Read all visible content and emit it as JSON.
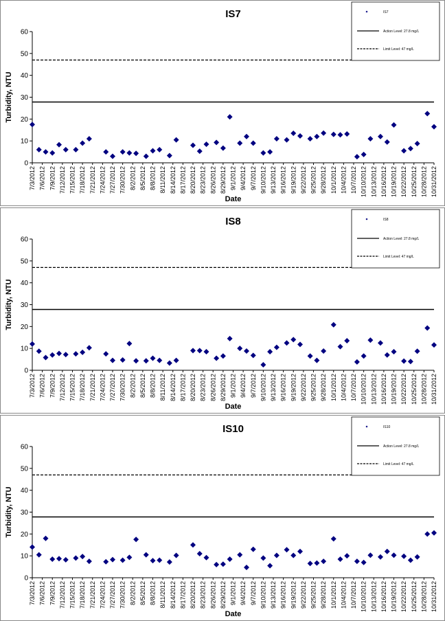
{
  "chart_data": [
    {
      "type": "scatter",
      "title": "IS7",
      "x_label": "Date",
      "y_label": "Turbidity, NTU",
      "xlim": [
        "7/3/2012",
        "10/31/2012"
      ],
      "xticks": [
        "7/3/2012",
        "7/6/2012",
        "7/9/2012",
        "7/12/2012",
        "7/15/2012",
        "7/18/2012",
        "7/21/2012",
        "7/24/2012",
        "7/27/2012",
        "7/30/2012",
        "8/2/2012",
        "8/5/2012",
        "8/8/2012",
        "8/11/2012",
        "8/14/2012",
        "8/17/2012",
        "8/20/2012",
        "8/23/2012",
        "8/26/2012",
        "8/29/2012",
        "9/1/2012",
        "9/4/2012",
        "9/7/2012",
        "9/10/2012",
        "9/13/2012",
        "9/16/2012",
        "9/19/2012",
        "9/22/2012",
        "9/25/2012",
        "9/28/2012",
        "10/1/2012",
        "10/4/2012",
        "10/7/2012",
        "10/10/2012",
        "10/13/2012",
        "10/16/2012",
        "10/19/2012",
        "10/22/2012",
        "10/25/2012",
        "10/28/2012",
        "10/31/2012"
      ],
      "ylim": [
        0,
        60
      ],
      "yticks": [
        0,
        10,
        20,
        30,
        40,
        50,
        60
      ],
      "series": [
        {
          "name": "IS7",
          "color": "#000080",
          "x": [
            "7/3/2012",
            "7/5/2012",
            "7/7/2012",
            "7/9/2012",
            "7/11/2012",
            "7/13/2012",
            "7/16/2012",
            "7/18/2012",
            "7/20/2012",
            "7/25/2012",
            "7/27/2012",
            "7/30/2012",
            "8/1/2012",
            "8/3/2012",
            "8/6/2012",
            "8/8/2012",
            "8/10/2012",
            "8/13/2012",
            "8/15/2012",
            "8/20/2012",
            "8/22/2012",
            "8/24/2012",
            "8/27/2012",
            "8/29/2012",
            "8/31/2012",
            "9/3/2012",
            "9/5/2012",
            "9/7/2012",
            "9/10/2012",
            "9/12/2012",
            "9/14/2012",
            "9/17/2012",
            "9/19/2012",
            "9/21/2012",
            "9/24/2012",
            "9/26/2012",
            "9/28/2012",
            "10/1/2012",
            "10/3/2012",
            "10/5/2012",
            "10/8/2012",
            "10/10/2012",
            "10/12/2012",
            "10/15/2012",
            "10/17/2012",
            "10/19/2012",
            "10/22/2012",
            "10/24/2012",
            "10/26/2012",
            "10/29/2012",
            "10/31/2012"
          ],
          "values": [
            17.5,
            6,
            5,
            4.5,
            8.3,
            6,
            6,
            9,
            11,
            5,
            3,
            5,
            4.5,
            4.3,
            3,
            5.5,
            6,
            3.3,
            10.5,
            8,
            5.3,
            8.5,
            9.3,
            6.7,
            21,
            9,
            12,
            9,
            4.5,
            5,
            11,
            10.5,
            13.5,
            12.3,
            11,
            12,
            13.6,
            13,
            12.8,
            13.2,
            2.8,
            3.8,
            11,
            12,
            9.5,
            17.3,
            5.5,
            6.5,
            8.8,
            22.5,
            16.5
          ]
        }
      ],
      "lines": [
        {
          "name": "Action Level: 27.8 mg/L",
          "value": 27.8,
          "style": "solid",
          "color": "#000000"
        },
        {
          "name": "Limit Level: 47 mg/L",
          "value": 47,
          "style": "dashed",
          "color": "#000000"
        }
      ]
    },
    {
      "type": "scatter",
      "title": "IS8",
      "x_label": "Date",
      "y_label": "Turbidity, NTU",
      "xlim": [
        "7/3/2012",
        "10/31/2012"
      ],
      "xticks": [
        "7/3/2012",
        "7/6/2012",
        "7/9/2012",
        "7/12/2012",
        "7/15/2012",
        "7/18/2012",
        "7/21/2012",
        "7/24/2012",
        "7/27/2012",
        "7/30/2012",
        "8/2/2012",
        "8/5/2012",
        "8/8/2012",
        "8/11/2012",
        "8/14/2012",
        "8/17/2012",
        "8/20/2012",
        "8/23/2012",
        "8/26/2012",
        "8/29/2012",
        "9/1/2012",
        "9/4/2012",
        "9/7/2012",
        "9/10/2012",
        "9/13/2012",
        "9/16/2012",
        "9/19/2012",
        "9/22/2012",
        "9/25/2012",
        "9/28/2012",
        "10/1/2012",
        "10/4/2012",
        "10/7/2012",
        "10/10/2012",
        "10/13/2012",
        "10/16/2012",
        "10/19/2012",
        "10/22/2012",
        "10/25/2012",
        "10/28/2012",
        "10/31/2012"
      ],
      "ylim": [
        0,
        60
      ],
      "yticks": [
        0,
        10,
        20,
        30,
        40,
        50,
        60
      ],
      "series": [
        {
          "name": "IS8",
          "color": "#000080",
          "x": [
            "7/3/2012",
            "7/5/2012",
            "7/7/2012",
            "7/9/2012",
            "7/11/2012",
            "7/13/2012",
            "7/16/2012",
            "7/18/2012",
            "7/20/2012",
            "7/25/2012",
            "7/27/2012",
            "7/30/2012",
            "8/1/2012",
            "8/3/2012",
            "8/6/2012",
            "8/8/2012",
            "8/10/2012",
            "8/13/2012",
            "8/15/2012",
            "8/20/2012",
            "8/22/2012",
            "8/24/2012",
            "8/27/2012",
            "8/29/2012",
            "8/31/2012",
            "9/3/2012",
            "9/5/2012",
            "9/7/2012",
            "9/10/2012",
            "9/12/2012",
            "9/14/2012",
            "9/17/2012",
            "9/19/2012",
            "9/21/2012",
            "9/24/2012",
            "9/26/2012",
            "9/28/2012",
            "10/1/2012",
            "10/3/2012",
            "10/5/2012",
            "10/8/2012",
            "10/10/2012",
            "10/12/2012",
            "10/15/2012",
            "10/17/2012",
            "10/19/2012",
            "10/22/2012",
            "10/24/2012",
            "10/26/2012",
            "10/29/2012",
            "10/31/2012"
          ],
          "values": [
            12,
            8.7,
            5.8,
            7,
            7.7,
            7.2,
            7.5,
            8.2,
            10.3,
            7.5,
            4.5,
            4.7,
            12.2,
            4.3,
            4.3,
            5.5,
            4.5,
            3.3,
            4.5,
            9,
            9,
            8.5,
            5.5,
            6.5,
            14.5,
            10,
            8.8,
            6.8,
            2.5,
            8.5,
            10.5,
            12.5,
            14,
            11.8,
            6.5,
            4.5,
            8.8,
            20.8,
            10.8,
            13.5,
            3.8,
            6.5,
            13.8,
            12.5,
            7,
            8.5,
            4.2,
            4,
            8.7,
            19.3,
            11.6
          ]
        }
      ],
      "lines": [
        {
          "name": "Action Level: 27.8 mg/L",
          "value": 27.8,
          "style": "solid",
          "color": "#000000"
        },
        {
          "name": "Limit Level: 47 mg/L",
          "value": 47,
          "style": "dashed",
          "color": "#000000"
        }
      ]
    },
    {
      "type": "scatter",
      "title": "IS10",
      "x_label": "Date",
      "y_label": "Turbidity, NTU",
      "xlim": [
        "7/3/2012",
        "10/31/2012"
      ],
      "xticks": [
        "7/3/2012",
        "7/6/2012",
        "7/9/2012",
        "7/12/2012",
        "7/15/2012",
        "7/18/2012",
        "7/21/2012",
        "7/24/2012",
        "7/27/2012",
        "7/30/2012",
        "8/2/2012",
        "8/5/2012",
        "8/8/2012",
        "8/11/2012",
        "8/14/2012",
        "8/17/2012",
        "8/20/2012",
        "8/23/2012",
        "8/26/2012",
        "8/29/2012",
        "9/1/2012",
        "9/4/2012",
        "9/7/2012",
        "9/10/2012",
        "9/13/2012",
        "9/16/2012",
        "9/19/2012",
        "9/22/2012",
        "9/25/2012",
        "9/28/2012",
        "10/1/2012",
        "10/4/2012",
        "10/7/2012",
        "10/10/2012",
        "10/13/2012",
        "10/16/2012",
        "10/19/2012",
        "10/22/2012",
        "10/25/2012",
        "10/28/2012",
        "10/31/2012"
      ],
      "ylim": [
        0,
        60
      ],
      "yticks": [
        0,
        10,
        20,
        30,
        40,
        50,
        60
      ],
      "series": [
        {
          "name": "IS10",
          "color": "#000080",
          "x": [
            "7/3/2012",
            "7/5/2012",
            "7/7/2012",
            "7/9/2012",
            "7/11/2012",
            "7/13/2012",
            "7/16/2012",
            "7/18/2012",
            "7/20/2012",
            "7/25/2012",
            "7/27/2012",
            "7/30/2012",
            "8/1/2012",
            "8/3/2012",
            "8/6/2012",
            "8/8/2012",
            "8/10/2012",
            "8/13/2012",
            "8/15/2012",
            "8/20/2012",
            "8/22/2012",
            "8/24/2012",
            "8/27/2012",
            "8/29/2012",
            "8/31/2012",
            "9/3/2012",
            "9/5/2012",
            "9/7/2012",
            "9/10/2012",
            "9/12/2012",
            "9/14/2012",
            "9/17/2012",
            "9/19/2012",
            "9/21/2012",
            "9/24/2012",
            "9/26/2012",
            "9/28/2012",
            "10/1/2012",
            "10/3/2012",
            "10/5/2012",
            "10/8/2012",
            "10/10/2012",
            "10/12/2012",
            "10/15/2012",
            "10/17/2012",
            "10/19/2012",
            "10/22/2012",
            "10/24/2012",
            "10/26/2012",
            "10/29/2012",
            "10/31/2012"
          ],
          "values": [
            14,
            10.5,
            18,
            8.5,
            8.7,
            8.2,
            9,
            9.7,
            7.5,
            7.3,
            8.3,
            8,
            9.3,
            17.5,
            10.5,
            7.8,
            8,
            7.2,
            10.2,
            15,
            11,
            9.2,
            6,
            6.2,
            8.5,
            10.5,
            4.7,
            13,
            9,
            5.5,
            10.2,
            12.8,
            10.2,
            12,
            6.5,
            6.7,
            7.5,
            17.8,
            8.5,
            10,
            7.5,
            7,
            10.3,
            9.5,
            12,
            10.3,
            9.8,
            8,
            9.5,
            20,
            20.5
          ]
        }
      ],
      "lines": [
        {
          "name": "Action Level: 27.8 mg/L",
          "value": 27.8,
          "style": "solid",
          "color": "#000000"
        },
        {
          "name": "Limit Level: 47 mg/L",
          "value": 47,
          "style": "dashed",
          "color": "#000000"
        }
      ]
    }
  ]
}
